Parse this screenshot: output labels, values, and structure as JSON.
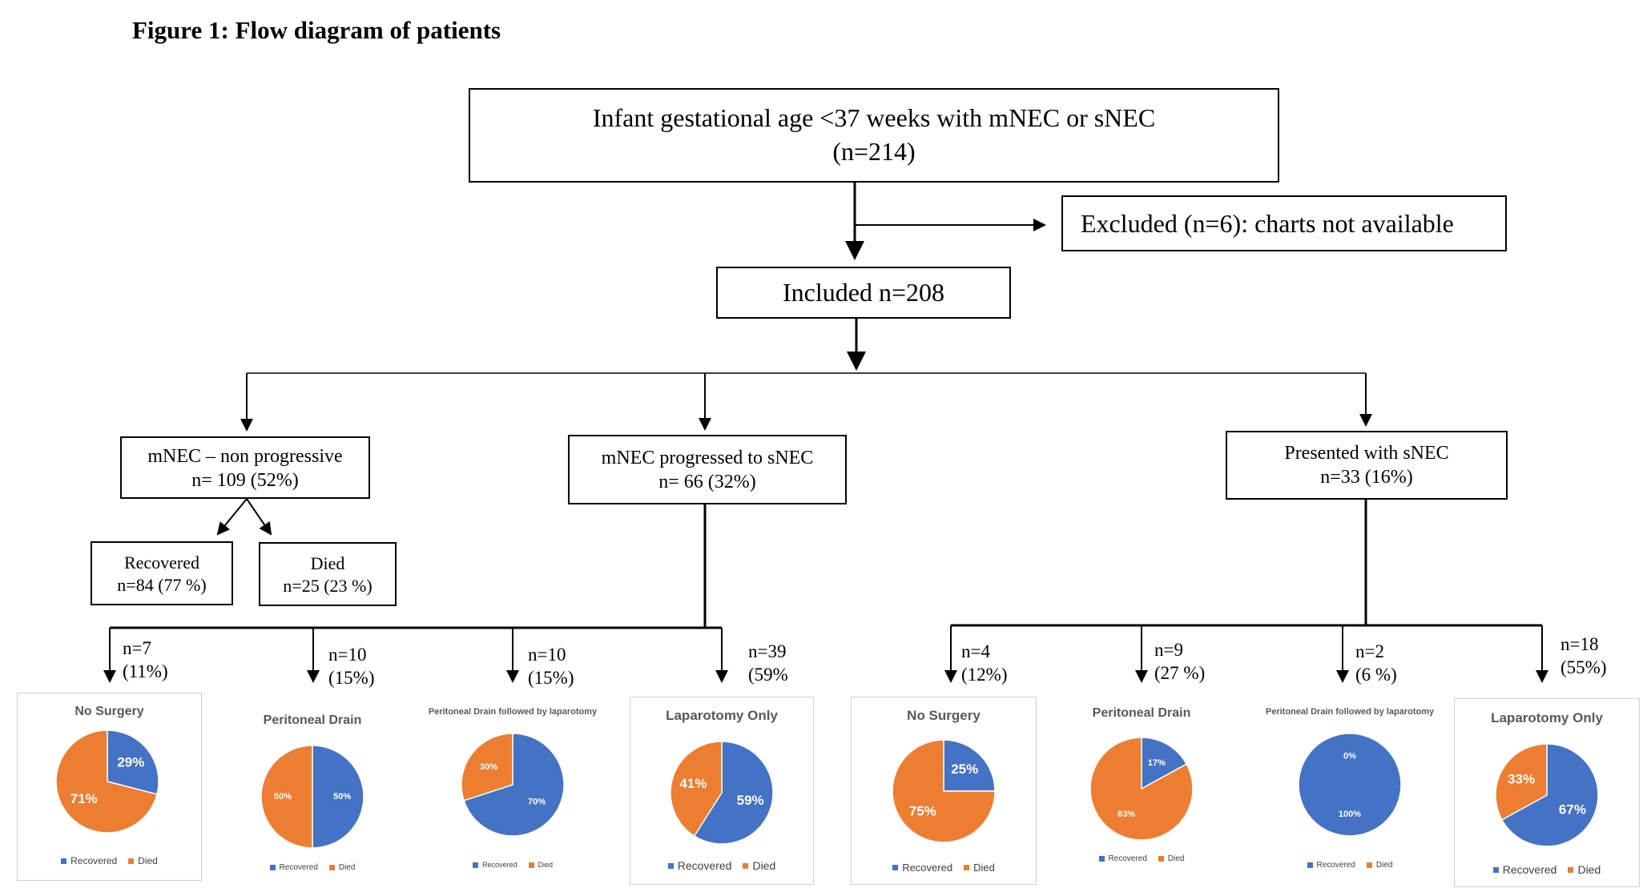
{
  "title": "Figure 1: Flow diagram of patients",
  "colors": {
    "recovered": "#4472C4",
    "died": "#ED7D31",
    "line": "#000000"
  },
  "boxes": {
    "root": {
      "line1": "Infant gestational age <37 weeks with mNEC or sNEC",
      "line2": "(n=214)"
    },
    "excluded": {
      "line1": "Excluded (n=6): charts not available"
    },
    "included": {
      "line1": "Included n=208"
    },
    "mnec_nonprog": {
      "line1": "mNEC – non progressive",
      "line2": "n= 109 (52%)"
    },
    "mnec_prog": {
      "line1": "mNEC progressed to sNEC",
      "line2": "n= 66 (32%)"
    },
    "snec": {
      "line1": "Presented with sNEC",
      "line2": "n=33 (16%)"
    },
    "recovered": {
      "line1": "Recovered",
      "line2": "n=84 (77 %)"
    },
    "died": {
      "line1": "Died",
      "line2": "n=25 (23 %)"
    }
  },
  "counts": [
    {
      "line1": "n=7",
      "line2": "(11%)"
    },
    {
      "line1": "n=10",
      "line2": "(15%)"
    },
    {
      "line1": "n=10",
      "line2": "(15%)"
    },
    {
      "line1": "n=39",
      "line2": "(59%"
    },
    {
      "line1": "n=4",
      "line2": "(12%)"
    },
    {
      "line1": "n=9",
      "line2": "(27 %)"
    },
    {
      "line1": "n=2",
      "line2": "(6 %)"
    },
    {
      "line1": "n=18",
      "line2": "(55%)"
    }
  ],
  "legend": {
    "recovered": "Recovered",
    "died": "Died"
  },
  "chart_data": [
    {
      "type": "pie",
      "title": "No Surgery",
      "categories": [
        "Recovered",
        "Died"
      ],
      "values": [
        29,
        71
      ],
      "labels": [
        "29%",
        "71%"
      ]
    },
    {
      "type": "pie",
      "title": "Peritoneal Drain",
      "categories": [
        "Recovered",
        "Died"
      ],
      "values": [
        50,
        50
      ],
      "labels": [
        "50%",
        "50%"
      ]
    },
    {
      "type": "pie",
      "title": "Peritoneal Drain followed by laparotomy",
      "categories": [
        "Recovered",
        "Died"
      ],
      "values": [
        70,
        30
      ],
      "labels": [
        "70%",
        "30%"
      ]
    },
    {
      "type": "pie",
      "title": "Laparotomy Only",
      "categories": [
        "Recovered",
        "Died"
      ],
      "values": [
        59,
        41
      ],
      "labels": [
        "59%",
        "41%"
      ]
    },
    {
      "type": "pie",
      "title": "No Surgery",
      "categories": [
        "Recovered",
        "Died"
      ],
      "values": [
        25,
        75
      ],
      "labels": [
        "25%",
        "75%"
      ]
    },
    {
      "type": "pie",
      "title": "Peritoneal Drain",
      "categories": [
        "Recovered",
        "Died"
      ],
      "values": [
        17,
        83
      ],
      "labels": [
        "17%",
        "83%"
      ]
    },
    {
      "type": "pie",
      "title": "Peritoneal Drain followed by laparotomy",
      "categories": [
        "Recovered",
        "Died"
      ],
      "values": [
        100,
        0
      ],
      "labels": [
        "100%",
        "0%"
      ]
    },
    {
      "type": "pie",
      "title": "Laparotomy Only",
      "categories": [
        "Recovered",
        "Died"
      ],
      "values": [
        67,
        33
      ],
      "labels": [
        "67%",
        "33%"
      ]
    }
  ]
}
